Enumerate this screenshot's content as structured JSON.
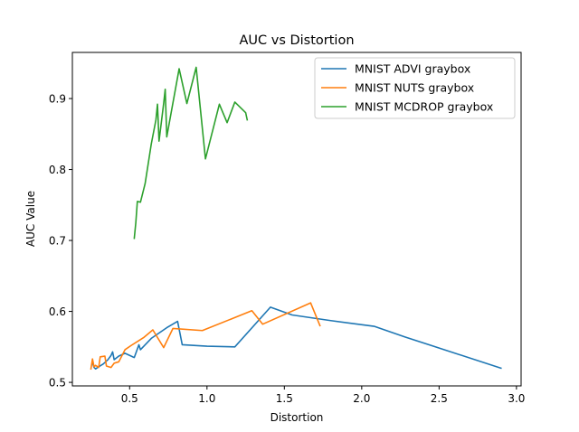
{
  "chart_data": {
    "type": "line",
    "title": "AUC vs Distortion",
    "xlabel": "Distortion",
    "ylabel": "AUC Value",
    "xlim": [
      0.13,
      3.03
    ],
    "ylim": [
      0.495,
      0.965
    ],
    "xticks": [
      {
        "value": 0.5,
        "label": "0.5"
      },
      {
        "value": 1.0,
        "label": "1.0"
      },
      {
        "value": 1.5,
        "label": "1.5"
      },
      {
        "value": 2.0,
        "label": "2.0"
      },
      {
        "value": 2.5,
        "label": "2.5"
      },
      {
        "value": 3.0,
        "label": "3.0"
      }
    ],
    "yticks": [
      {
        "value": 0.5,
        "label": "0.5"
      },
      {
        "value": 0.6,
        "label": "0.6"
      },
      {
        "value": 0.7,
        "label": "0.7"
      },
      {
        "value": 0.8,
        "label": "0.8"
      },
      {
        "value": 0.9,
        "label": "0.9"
      }
    ],
    "grid": false,
    "legend_position": "top-right",
    "series": [
      {
        "name": "MNIST ADVI graybox",
        "color": "#1f77b4",
        "points": [
          [
            0.26,
            0.528
          ],
          [
            0.27,
            0.521
          ],
          [
            0.28,
            0.519
          ],
          [
            0.3,
            0.522
          ],
          [
            0.33,
            0.526
          ],
          [
            0.36,
            0.532
          ],
          [
            0.38,
            0.538
          ],
          [
            0.39,
            0.543
          ],
          [
            0.4,
            0.532
          ],
          [
            0.43,
            0.537
          ],
          [
            0.47,
            0.541
          ],
          [
            0.53,
            0.535
          ],
          [
            0.56,
            0.553
          ],
          [
            0.57,
            0.546
          ],
          [
            0.64,
            0.562
          ],
          [
            0.74,
            0.577
          ],
          [
            0.81,
            0.586
          ],
          [
            0.84,
            0.553
          ],
          [
            1.0,
            0.551
          ],
          [
            1.18,
            0.55
          ],
          [
            1.41,
            0.606
          ],
          [
            1.55,
            0.595
          ],
          [
            1.8,
            0.587
          ],
          [
            2.08,
            0.579
          ],
          [
            2.28,
            0.564
          ],
          [
            2.9,
            0.52
          ]
        ]
      },
      {
        "name": "MNIST NUTS graybox",
        "color": "#ff7f0e",
        "points": [
          [
            0.25,
            0.519
          ],
          [
            0.26,
            0.533
          ],
          [
            0.27,
            0.522
          ],
          [
            0.28,
            0.524
          ],
          [
            0.3,
            0.521
          ],
          [
            0.31,
            0.536
          ],
          [
            0.34,
            0.537
          ],
          [
            0.35,
            0.523
          ],
          [
            0.38,
            0.521
          ],
          [
            0.4,
            0.527
          ],
          [
            0.43,
            0.529
          ],
          [
            0.47,
            0.546
          ],
          [
            0.51,
            0.552
          ],
          [
            0.59,
            0.563
          ],
          [
            0.65,
            0.574
          ],
          [
            0.72,
            0.549
          ],
          [
            0.78,
            0.576
          ],
          [
            0.97,
            0.573
          ],
          [
            1.29,
            0.601
          ],
          [
            1.36,
            0.582
          ],
          [
            1.67,
            0.612
          ],
          [
            1.73,
            0.58
          ]
        ]
      },
      {
        "name": "MNIST MCDROP graybox",
        "color": "#2ca02c",
        "points": [
          [
            0.53,
            0.703
          ],
          [
            0.54,
            0.725
          ],
          [
            0.55,
            0.755
          ],
          [
            0.57,
            0.754
          ],
          [
            0.6,
            0.78
          ],
          [
            0.64,
            0.836
          ],
          [
            0.67,
            0.87
          ],
          [
            0.68,
            0.892
          ],
          [
            0.69,
            0.84
          ],
          [
            0.72,
            0.893
          ],
          [
            0.73,
            0.913
          ],
          [
            0.74,
            0.846
          ],
          [
            0.82,
            0.942
          ],
          [
            0.87,
            0.893
          ],
          [
            0.93,
            0.944
          ],
          [
            0.99,
            0.815
          ],
          [
            1.08,
            0.892
          ],
          [
            1.13,
            0.866
          ],
          [
            1.18,
            0.895
          ],
          [
            1.25,
            0.88
          ],
          [
            1.26,
            0.87
          ]
        ]
      }
    ]
  }
}
